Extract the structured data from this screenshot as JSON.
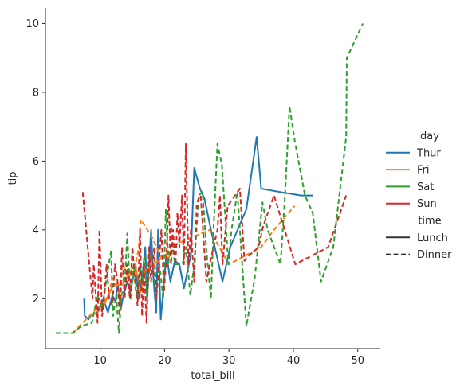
{
  "chart_data": {
    "type": "line",
    "xlabel": "total_bill",
    "ylabel": "tip",
    "xlim": [
      1.5,
      53.5
    ],
    "ylim": [
      0.55,
      10.45
    ],
    "xticks": [
      10,
      20,
      30,
      40,
      50
    ],
    "yticks": [
      2,
      4,
      6,
      8,
      10
    ],
    "grid": false,
    "legend_position": "right",
    "legend": {
      "hue_title": "day",
      "style_title": "time",
      "style_items": [
        {
          "name": "Lunch",
          "dash": "solid"
        },
        {
          "name": "Dinner",
          "dash": "dashed"
        }
      ]
    },
    "series": [
      {
        "name": "Thur",
        "color": "#1f77b4",
        "time": "Lunch",
        "x": [
          7.5,
          7.6,
          8.2,
          8.5,
          9.6,
          10.1,
          10.5,
          11.2,
          11.9,
          12.4,
          12.7,
          13.0,
          13.2,
          13.5,
          14.2,
          14.7,
          15.5,
          16.0,
          16.5,
          17.0,
          17.3,
          17.9,
          18.3,
          18.7,
          19.0,
          19.4,
          20.3,
          20.9,
          21.6,
          22.3,
          23.0,
          24.1,
          24.6,
          25.5,
          26.2,
          27.2,
          29.0,
          30.2,
          32.7,
          34.3,
          35.0,
          38.0,
          41.2,
          43.1
        ],
        "y": [
          2.0,
          1.5,
          1.4,
          1.5,
          1.6,
          1.8,
          2.0,
          1.6,
          2.1,
          1.9,
          2.5,
          2.0,
          1.7,
          2.0,
          2.5,
          2.2,
          3.0,
          2.0,
          2.6,
          3.5,
          2.0,
          4.0,
          2.5,
          1.6,
          4.0,
          1.4,
          3.3,
          2.5,
          3.1,
          3.0,
          2.3,
          3.3,
          5.8,
          5.2,
          4.9,
          4.0,
          2.5,
          3.5,
          4.6,
          6.7,
          5.2,
          5.1,
          5.0,
          5.0
        ]
      },
      {
        "name": "Thur",
        "color": "#1f77b4",
        "time": "Dinner",
        "x": [
          18.8
        ],
        "y": [
          3.0
        ]
      },
      {
        "name": "Fri",
        "color": "#ff7f0e",
        "time": "Lunch",
        "x": [
          8.6,
          10.3,
          12.0,
          13.4,
          15.4,
          16.3,
          17.0,
          21.0
        ],
        "y": [
          1.5,
          1.7,
          2.4,
          2.4,
          3.0,
          2.2,
          2.8,
          3.4
        ]
      },
      {
        "name": "Fri",
        "color": "#ff7f0e",
        "time": "Dinner",
        "x": [
          5.7,
          11.0,
          12.0,
          13.2,
          13.4,
          15.0,
          15.4,
          16.0,
          16.3,
          18.0,
          20.0,
          22.0,
          27.0,
          30.0,
          35.0,
          37.0,
          40.2
        ],
        "y": [
          1.0,
          2.0,
          2.6,
          2.0,
          3.0,
          2.5,
          2.9,
          3.5,
          4.3,
          3.8,
          3.0,
          3.6,
          4.0,
          3.0,
          3.5,
          4.0,
          4.7
        ]
      },
      {
        "name": "Sat",
        "color": "#2ca02c",
        "time": "Dinner",
        "x": [
          3.1,
          5.8,
          7.0,
          8.7,
          9.6,
          10.3,
          11.0,
          11.7,
          12.0,
          12.5,
          12.9,
          13.3,
          13.8,
          14.2,
          14.7,
          15.2,
          15.8,
          16.2,
          16.5,
          16.9,
          17.3,
          17.8,
          18.2,
          18.7,
          19.2,
          19.8,
          20.2,
          20.6,
          21.0,
          21.6,
          22.1,
          22.8,
          23.3,
          24.0,
          24.6,
          25.3,
          25.9,
          26.5,
          27.2,
          27.6,
          28.2,
          28.9,
          29.9,
          30.4,
          31.3,
          32.7,
          34.0,
          35.2,
          36.0,
          38.0,
          38.7,
          39.4,
          40.2,
          41.8,
          43.0,
          44.3,
          46.2,
          48.2,
          48.3,
          50.8
        ],
        "y": [
          1.0,
          1.0,
          1.2,
          1.3,
          2.1,
          1.7,
          2.6,
          3.4,
          1.5,
          2.1,
          1.0,
          2.1,
          2.3,
          3.9,
          2.0,
          3.0,
          2.0,
          3.0,
          2.5,
          3.2,
          2.0,
          3.3,
          3.0,
          2.0,
          3.0,
          2.0,
          4.6,
          3.0,
          4.1,
          3.0,
          3.0,
          3.0,
          3.5,
          2.1,
          3.0,
          5.0,
          5.1,
          3.4,
          2.0,
          4.0,
          6.5,
          5.9,
          3.0,
          4.0,
          5.1,
          1.2,
          2.6,
          4.8,
          4.0,
          3.0,
          5.0,
          7.6,
          6.6,
          5.0,
          4.5,
          2.5,
          3.5,
          6.7,
          9.0,
          10.0
        ]
      },
      {
        "name": "Sun",
        "color": "#d62728",
        "time": "Dinner",
        "x": [
          7.3,
          8.8,
          9.0,
          9.6,
          9.9,
          10.3,
          10.6,
          11.0,
          11.4,
          11.9,
          12.3,
          12.7,
          13.0,
          13.4,
          13.8,
          14.2,
          14.6,
          15.0,
          15.4,
          15.8,
          16.2,
          16.5,
          16.8,
          17.2,
          17.6,
          17.9,
          18.4,
          18.7,
          19.1,
          19.5,
          19.9,
          20.3,
          20.6,
          21.0,
          21.3,
          21.7,
          22.0,
          22.3,
          22.7,
          23.0,
          23.3,
          23.7,
          24.1,
          24.6,
          25.0,
          25.6,
          26.5,
          27.0,
          28.2,
          28.6,
          29.0,
          29.8,
          31.7,
          32.4,
          32.8,
          34.6,
          35.3,
          37.0,
          40.3,
          45.4,
          48.2
        ],
        "y": [
          5.1,
          2.0,
          3.0,
          1.3,
          4.0,
          1.5,
          2.0,
          3.0,
          2.0,
          1.8,
          3.0,
          2.5,
          1.5,
          3.5,
          2.0,
          3.0,
          2.0,
          3.5,
          2.5,
          1.8,
          4.0,
          1.5,
          3.0,
          1.3,
          3.5,
          2.5,
          3.5,
          2.0,
          3.0,
          4.0,
          2.2,
          3.2,
          5.0,
          3.0,
          4.0,
          3.0,
          4.5,
          3.5,
          5.0,
          3.0,
          6.5,
          3.0,
          4.0,
          2.5,
          4.8,
          5.0,
          2.5,
          3.0,
          4.0,
          5.0,
          3.0,
          4.7,
          5.2,
          3.1,
          3.2,
          3.5,
          4.1,
          5.0,
          3.0,
          3.5,
          5.0
        ]
      }
    ]
  }
}
